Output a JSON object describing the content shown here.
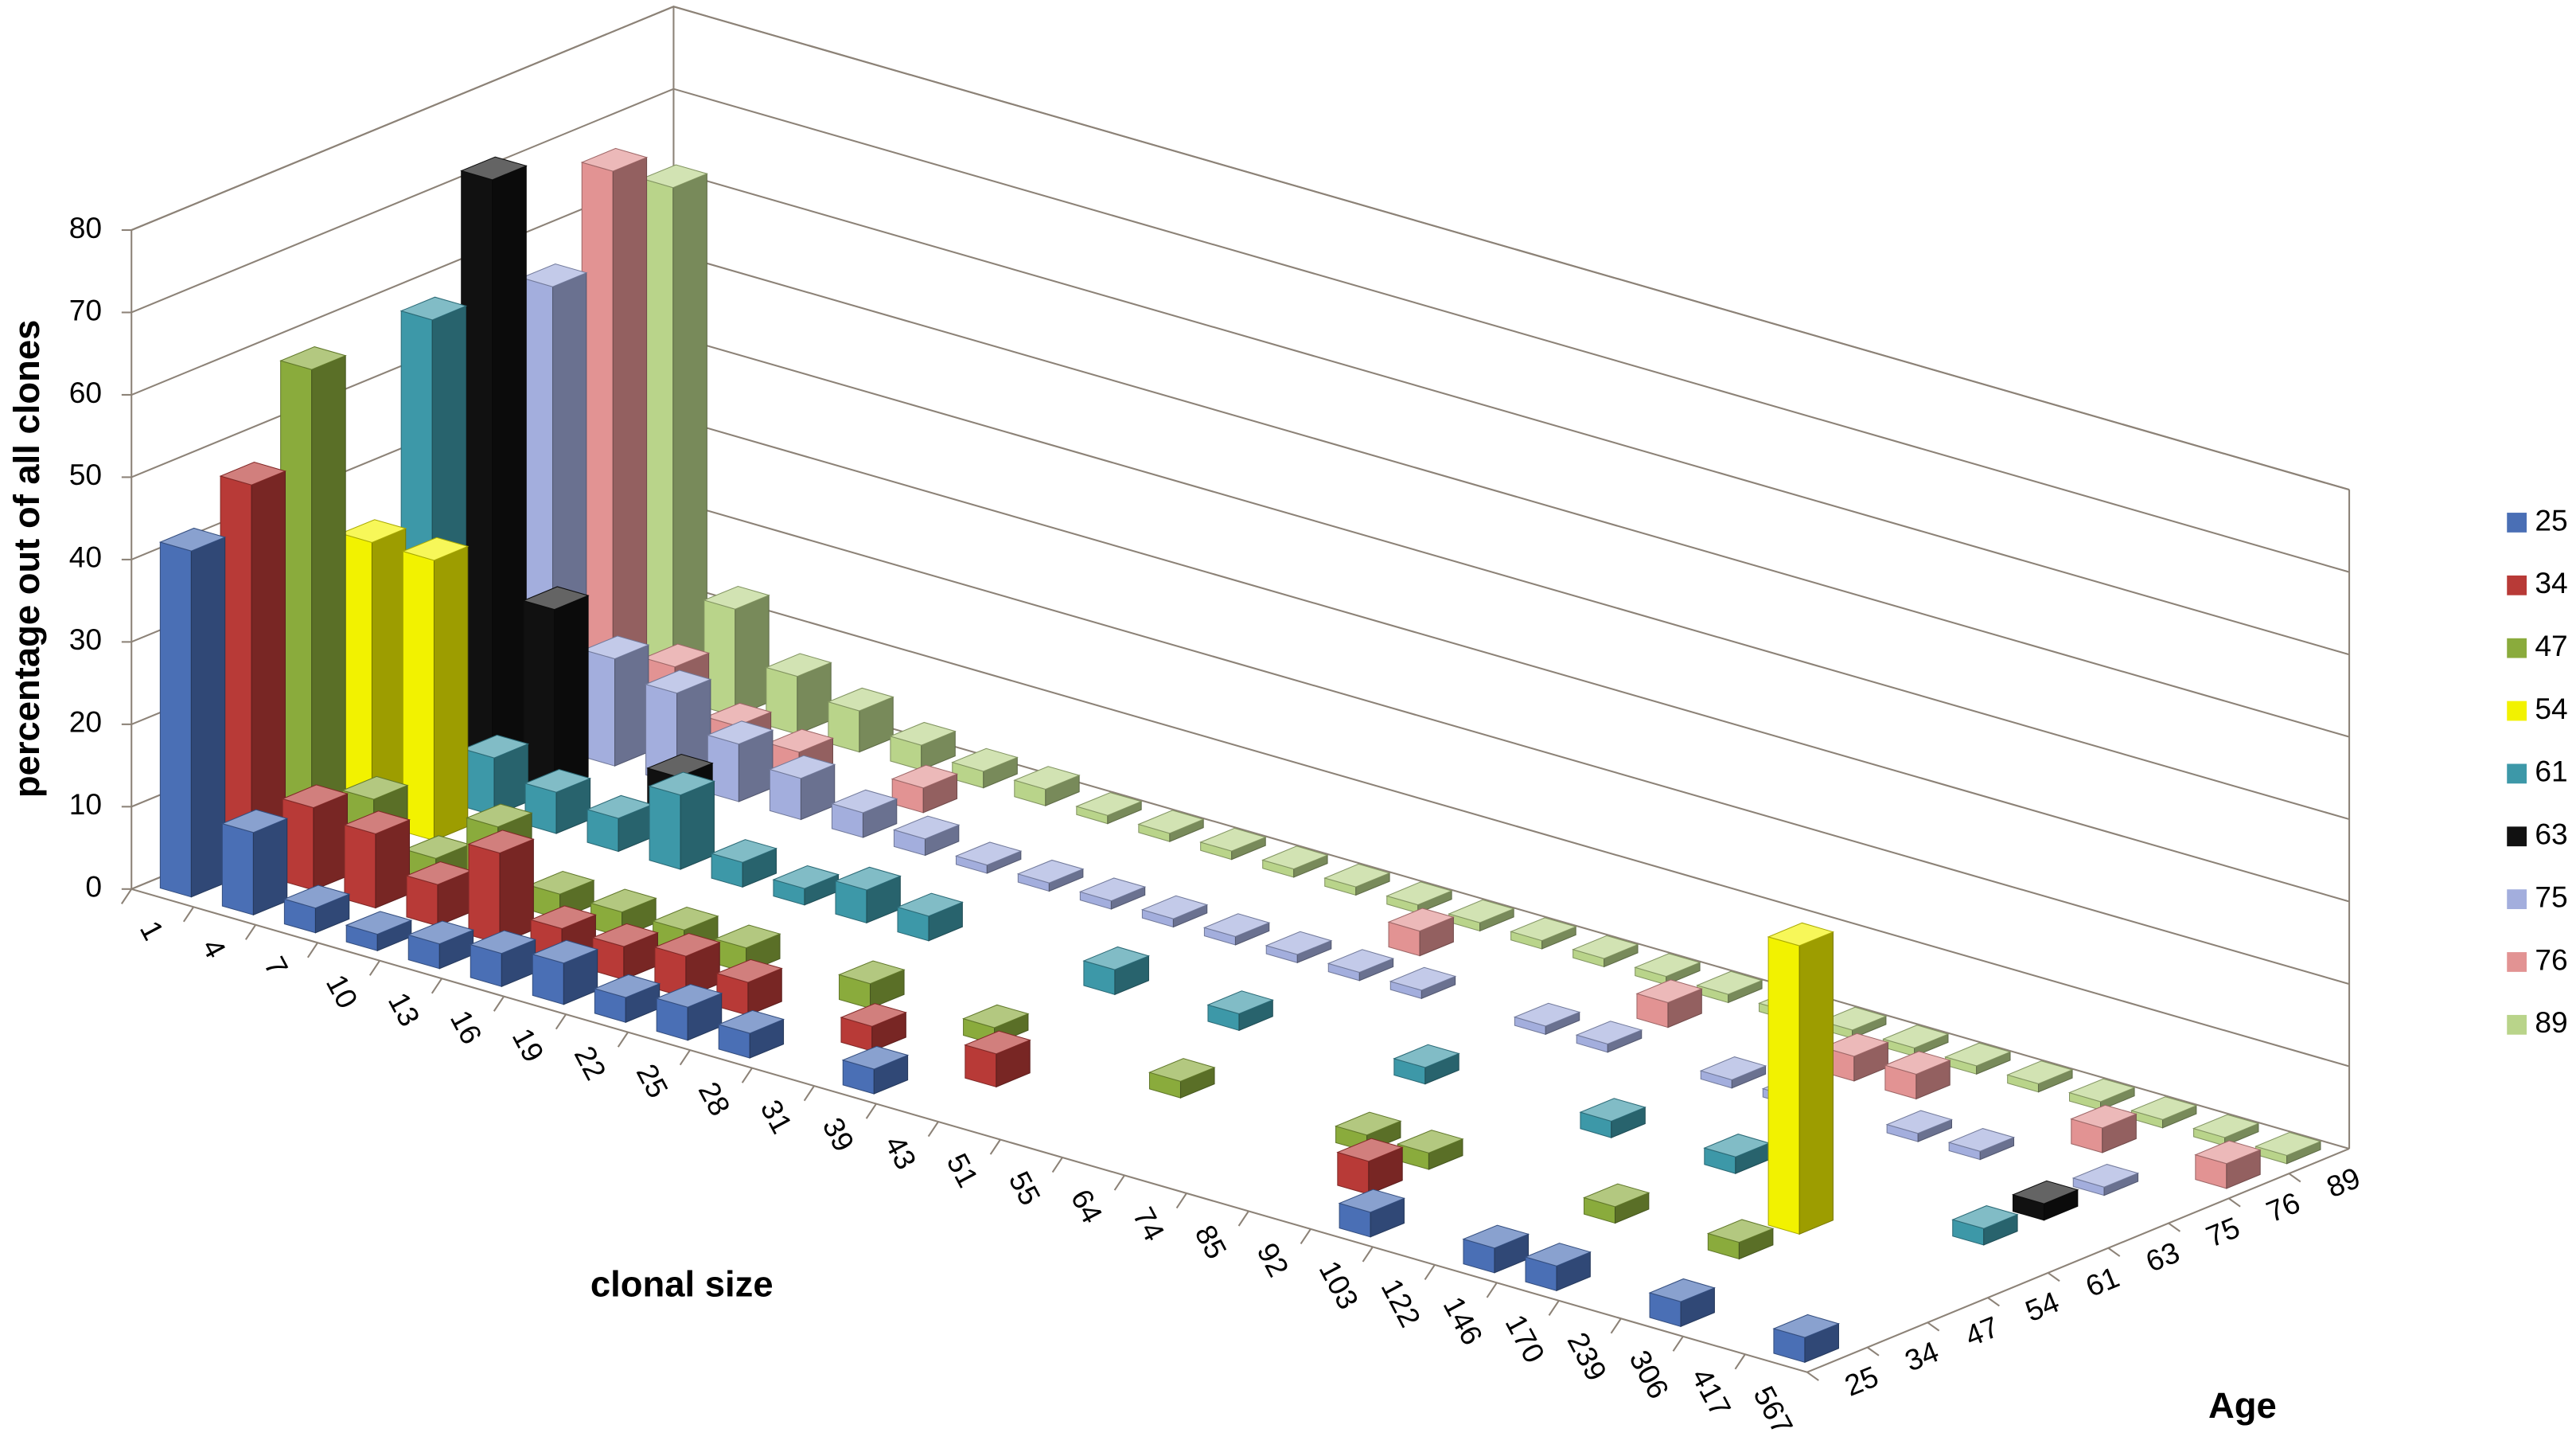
{
  "chart_data": {
    "type": "bar3d",
    "y_label": "percentage out of all clones",
    "x_label": "clonal size",
    "z_label": "Age",
    "categories": [
      "1",
      "4",
      "7",
      "10",
      "13",
      "16",
      "19",
      "22",
      "25",
      "28",
      "31",
      "39",
      "43",
      "51",
      "55",
      "64",
      "74",
      "85",
      "92",
      "103",
      "122",
      "146",
      "170",
      "239",
      "306",
      "417",
      "567"
    ],
    "series": [
      {
        "name": "25",
        "color": "#4a6fb5",
        "values": [
          42,
          10,
          3,
          2,
          3,
          4,
          5,
          3,
          4,
          3,
          0,
          3,
          0,
          0,
          0,
          0,
          0,
          0,
          0,
          3,
          0,
          3,
          3,
          0,
          3,
          0,
          3
        ]
      },
      {
        "name": "34",
        "color": "#b83a37",
        "values": [
          47,
          10,
          9,
          5,
          11,
          4,
          4,
          5,
          4,
          0,
          3,
          0,
          4,
          0,
          0,
          0,
          0,
          0,
          4,
          0,
          0,
          0,
          0,
          0,
          0,
          0,
          0
        ]
      },
      {
        "name": "47",
        "color": "#8aab3c",
        "values": [
          58,
          8,
          3,
          9,
          3,
          3,
          3,
          3,
          0,
          3,
          0,
          2,
          0,
          0,
          2,
          0,
          0,
          2,
          2,
          0,
          0,
          2,
          0,
          2,
          0,
          0,
          0
        ]
      },
      {
        "name": "54",
        "color": "#f2f200",
        "values": [
          34,
          34,
          0,
          0,
          0,
          0,
          0,
          0,
          0,
          0,
          0,
          0,
          0,
          0,
          0,
          0,
          0,
          0,
          0,
          0,
          0,
          0,
          0,
          35,
          0,
          0,
          0
        ]
      },
      {
        "name": "61",
        "color": "#3d98a8",
        "values": [
          58,
          7,
          5,
          4,
          9,
          3,
          2,
          4,
          3,
          0,
          0,
          3,
          0,
          2,
          0,
          0,
          2,
          0,
          0,
          2,
          0,
          2,
          0,
          0,
          0,
          2,
          0
        ]
      },
      {
        "name": "63",
        "color": "#111111",
        "values": [
          72,
          22,
          0,
          6,
          0,
          0,
          0,
          0,
          0,
          0,
          0,
          0,
          0,
          0,
          0,
          0,
          0,
          0,
          0,
          0,
          0,
          0,
          0,
          0,
          0,
          2,
          0
        ]
      },
      {
        "name": "75",
        "color": "#a3aedd",
        "values": [
          56,
          13,
          11,
          7,
          5,
          3,
          2,
          1,
          1,
          1,
          1,
          1,
          1,
          1,
          1,
          0,
          1,
          1,
          0,
          1,
          1,
          0,
          1,
          1,
          0,
          1,
          0
        ]
      },
      {
        "name": "76",
        "color": "#e29393",
        "values": [
          67,
          9,
          4,
          3,
          0,
          3,
          0,
          0,
          0,
          0,
          0,
          0,
          0,
          3,
          0,
          0,
          0,
          3,
          0,
          0,
          3,
          3,
          0,
          0,
          3,
          0,
          3
        ]
      },
      {
        "name": "89",
        "color": "#b9d48a",
        "values": [
          62,
          13,
          7,
          5,
          3,
          2,
          2,
          1,
          1,
          1,
          1,
          1,
          1,
          1,
          1,
          1,
          1,
          1,
          1,
          1,
          1,
          1,
          1,
          1,
          1,
          1,
          1
        ]
      }
    ],
    "ylim": [
      0,
      80
    ],
    "yticks": [
      0,
      10,
      20,
      30,
      40,
      50,
      60,
      70,
      80
    ],
    "grid": true,
    "legend": "right"
  }
}
